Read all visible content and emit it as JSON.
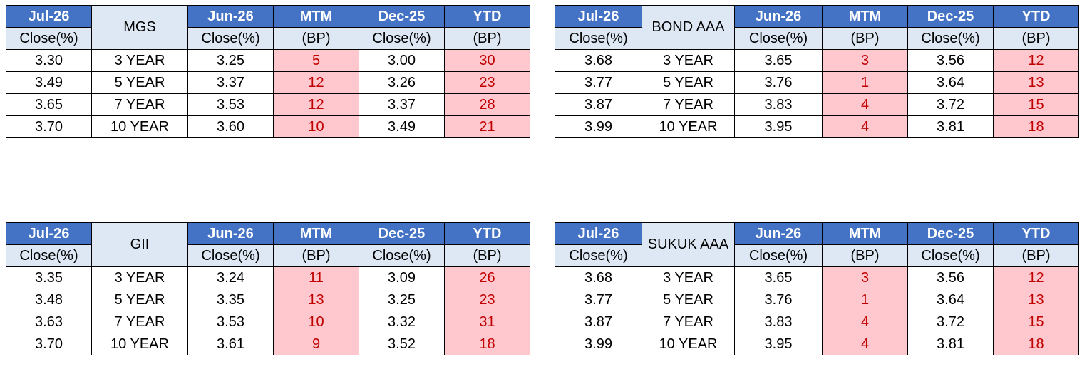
{
  "colors": {
    "header_bg": "#4472c4",
    "header_text": "#ffffff",
    "subheader_bg": "#dde8f4",
    "highlight_bg": "#ffc7ce",
    "highlight_text": "#c00000"
  },
  "headers": {
    "col0": "Jul-26",
    "col2": "Jun-26",
    "col3": "MTM",
    "col4": "Dec-25",
    "col5": "YTD"
  },
  "subheaders": {
    "col0": "Close(%)",
    "col2": "Close(%)",
    "col3": "(BP)",
    "col4": "Close(%)",
    "col5": "(BP)"
  },
  "tables": [
    {
      "name": "MGS",
      "rows": [
        {
          "jul": "3.30",
          "tenor": "3 YEAR",
          "jun": "3.25",
          "mtm": "5",
          "dec": "3.00",
          "ytd": "30"
        },
        {
          "jul": "3.49",
          "tenor": "5 YEAR",
          "jun": "3.37",
          "mtm": "12",
          "dec": "3.26",
          "ytd": "23"
        },
        {
          "jul": "3.65",
          "tenor": "7 YEAR",
          "jun": "3.53",
          "mtm": "12",
          "dec": "3.37",
          "ytd": "28"
        },
        {
          "jul": "3.70",
          "tenor": "10 YEAR",
          "jun": "3.60",
          "mtm": "10",
          "dec": "3.49",
          "ytd": "21"
        }
      ]
    },
    {
      "name": "BOND AAA",
      "rows": [
        {
          "jul": "3.68",
          "tenor": "3 YEAR",
          "jun": "3.65",
          "mtm": "3",
          "dec": "3.56",
          "ytd": "12"
        },
        {
          "jul": "3.77",
          "tenor": "5 YEAR",
          "jun": "3.76",
          "mtm": "1",
          "dec": "3.64",
          "ytd": "13"
        },
        {
          "jul": "3.87",
          "tenor": "7 YEAR",
          "jun": "3.83",
          "mtm": "4",
          "dec": "3.72",
          "ytd": "15"
        },
        {
          "jul": "3.99",
          "tenor": "10 YEAR",
          "jun": "3.95",
          "mtm": "4",
          "dec": "3.81",
          "ytd": "18"
        }
      ]
    },
    {
      "name": "GII",
      "rows": [
        {
          "jul": "3.35",
          "tenor": "3 YEAR",
          "jun": "3.24",
          "mtm": "11",
          "dec": "3.09",
          "ytd": "26"
        },
        {
          "jul": "3.48",
          "tenor": "5 YEAR",
          "jun": "3.35",
          "mtm": "13",
          "dec": "3.25",
          "ytd": "23"
        },
        {
          "jul": "3.63",
          "tenor": "7 YEAR",
          "jun": "3.53",
          "mtm": "10",
          "dec": "3.32",
          "ytd": "31"
        },
        {
          "jul": "3.70",
          "tenor": "10 YEAR",
          "jun": "3.61",
          "mtm": "9",
          "dec": "3.52",
          "ytd": "18"
        }
      ]
    },
    {
      "name": "SUKUK AAA",
      "rows": [
        {
          "jul": "3.68",
          "tenor": "3 YEAR",
          "jun": "3.65",
          "mtm": "3",
          "dec": "3.56",
          "ytd": "12"
        },
        {
          "jul": "3.77",
          "tenor": "5 YEAR",
          "jun": "3.76",
          "mtm": "1",
          "dec": "3.64",
          "ytd": "13"
        },
        {
          "jul": "3.87",
          "tenor": "7 YEAR",
          "jun": "3.83",
          "mtm": "4",
          "dec": "3.72",
          "ytd": "15"
        },
        {
          "jul": "3.99",
          "tenor": "10 YEAR",
          "jun": "3.95",
          "mtm": "4",
          "dec": "3.81",
          "ytd": "18"
        }
      ]
    }
  ]
}
